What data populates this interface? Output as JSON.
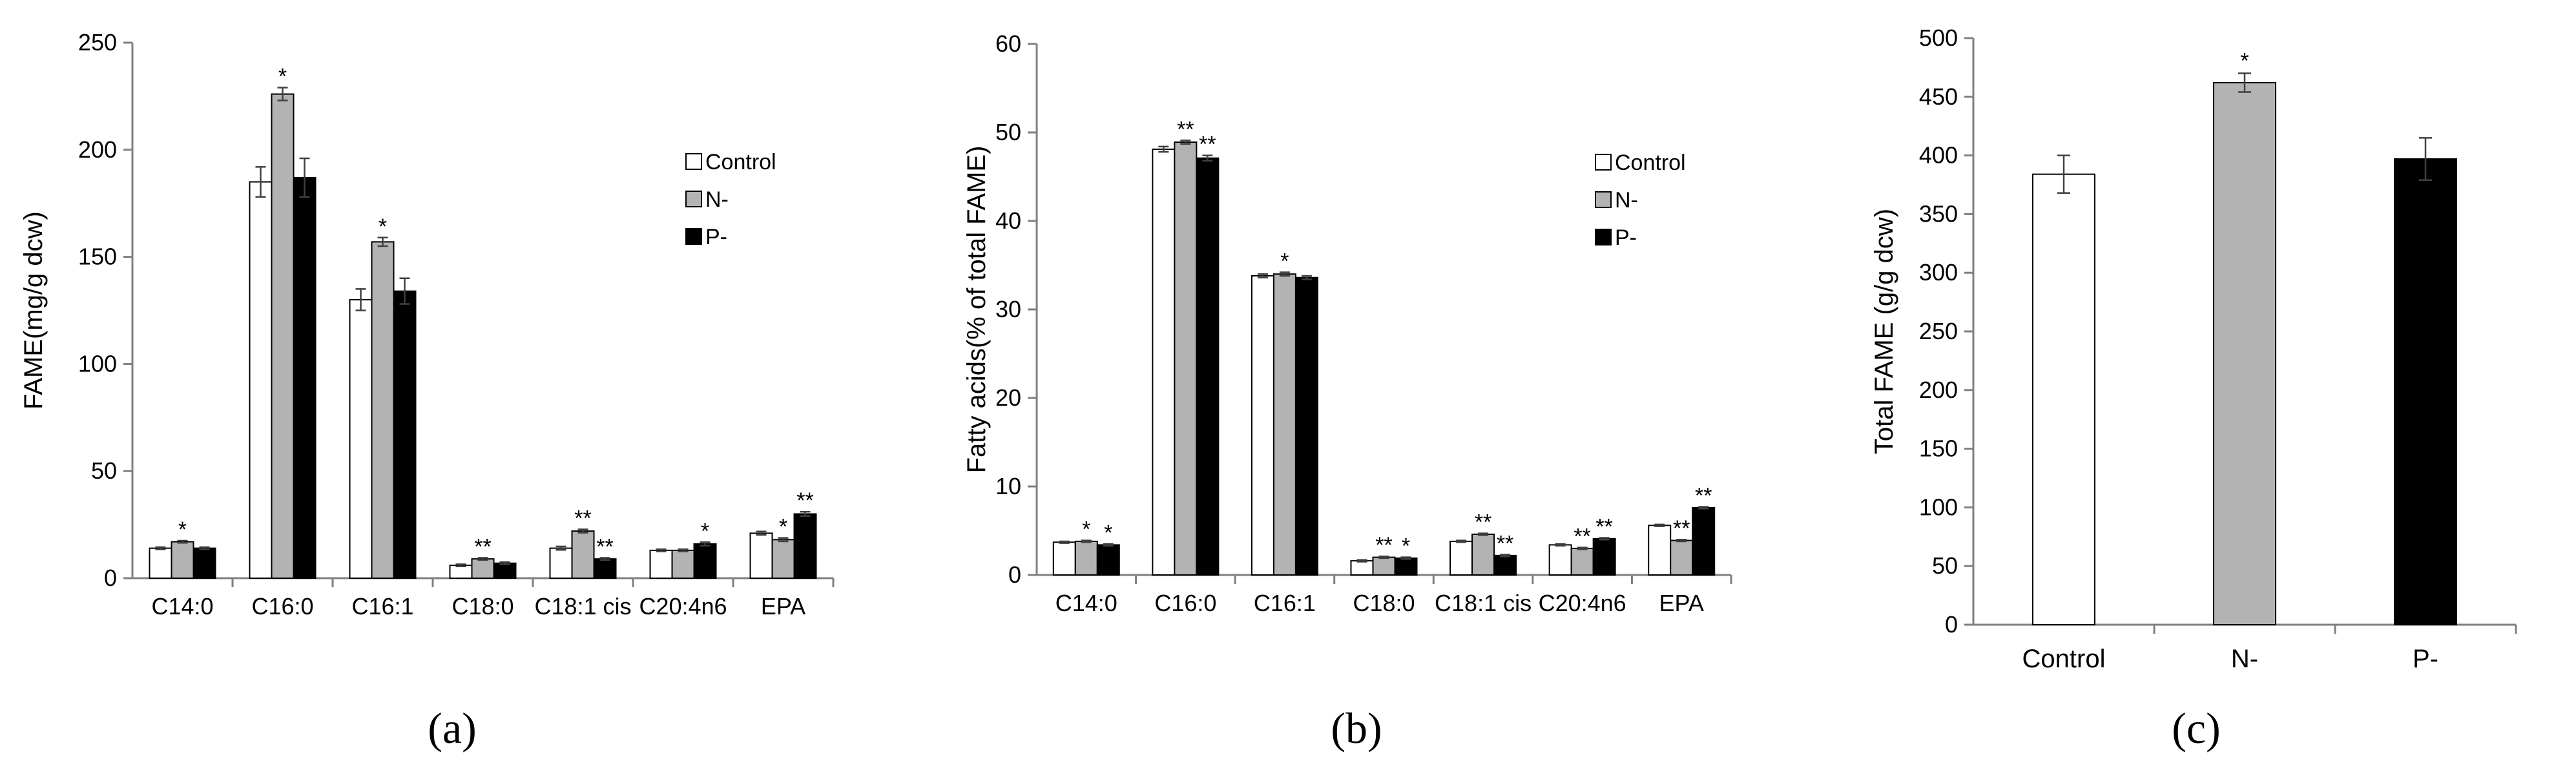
{
  "colors": {
    "Control": "#ffffff",
    "N-": "#b3b3b3",
    "P-": "#000000",
    "axis": "#7f7f7f",
    "errorbar": "#404040"
  },
  "legend": [
    "Control",
    "N-",
    "P-"
  ],
  "panel_labels": [
    "(a)",
    "(b)",
    "(c)"
  ],
  "chart_data": [
    {
      "type": "bar",
      "panel": "(a)",
      "title": "",
      "xlabel": "",
      "ylabel": "FAME(mg/g dcw)",
      "ylim": [
        0,
        250
      ],
      "yticks": [
        "0",
        "50",
        "100",
        "150",
        "200",
        "250"
      ],
      "categories": [
        "C14:0",
        "C16:0",
        "C16:1",
        "C18:0",
        "C18:1 cis",
        "C20:4n6",
        "EPA"
      ],
      "series": [
        {
          "name": "Control",
          "values": [
            14,
            185,
            130,
            6,
            14,
            13,
            21
          ],
          "errors": [
            0.5,
            7,
            5,
            0.5,
            0.8,
            0.5,
            0.8
          ],
          "stars": [
            "",
            "",
            "",
            "",
            "",
            "",
            ""
          ]
        },
        {
          "name": "N-",
          "values": [
            17,
            226,
            157,
            9,
            22,
            13,
            18
          ],
          "errors": [
            0.5,
            3,
            2,
            0.5,
            0.8,
            0.5,
            0.8
          ],
          "stars": [
            "*",
            "*",
            "*",
            "**",
            "**",
            "",
            "*"
          ]
        },
        {
          "name": "P-",
          "values": [
            14,
            187,
            134,
            7,
            9,
            16,
            30
          ],
          "errors": [
            0.5,
            9,
            6,
            0.5,
            0.5,
            0.8,
            1
          ],
          "stars": [
            "",
            "",
            "",
            "",
            "**",
            "*",
            "**"
          ]
        }
      ]
    },
    {
      "type": "bar",
      "panel": "(b)",
      "title": "",
      "xlabel": "",
      "ylabel": "Fatty acids(% of total FAME)",
      "ylim": [
        0,
        60
      ],
      "yticks": [
        "0",
        "10",
        "20",
        "30",
        "40",
        "50",
        "60"
      ],
      "categories": [
        "C14:0",
        "C16:0",
        "C16:1",
        "C18:0",
        "C18:1 cis",
        "C20:4n6",
        "EPA"
      ],
      "series": [
        {
          "name": "Control",
          "values": [
            3.7,
            48.1,
            33.8,
            1.6,
            3.8,
            3.4,
            5.6
          ],
          "errors": [
            0.1,
            0.3,
            0.2,
            0.1,
            0.1,
            0.1,
            0.1
          ],
          "stars": [
            "",
            "",
            "",
            "",
            "",
            "",
            ""
          ]
        },
        {
          "name": "N-",
          "values": [
            3.8,
            48.9,
            34.0,
            2.0,
            4.6,
            3.0,
            3.9
          ],
          "errors": [
            0.1,
            0.2,
            0.2,
            0.1,
            0.1,
            0.1,
            0.1
          ],
          "stars": [
            "*",
            "**",
            "*",
            "**",
            "**",
            "**",
            "**"
          ]
        },
        {
          "name": "P-",
          "values": [
            3.4,
            47.1,
            33.6,
            1.9,
            2.2,
            4.1,
            7.6
          ],
          "errors": [
            0.1,
            0.3,
            0.2,
            0.1,
            0.1,
            0.1,
            0.1
          ],
          "stars": [
            "*",
            "**",
            "",
            "*",
            "**",
            "**",
            "**"
          ]
        }
      ]
    },
    {
      "type": "bar",
      "panel": "(c)",
      "title": "",
      "xlabel": "",
      "ylabel": "Total FAME (g/g dcw)",
      "ylim": [
        0,
        500
      ],
      "yticks": [
        "0",
        "50",
        "100",
        "150",
        "200",
        "250",
        "300",
        "350",
        "400",
        "450",
        "500"
      ],
      "categories": [
        "Control",
        "N-",
        "P-"
      ],
      "values": [
        384,
        462,
        397
      ],
      "errors": [
        16,
        8,
        18
      ],
      "stars": [
        "",
        "*",
        ""
      ]
    }
  ]
}
